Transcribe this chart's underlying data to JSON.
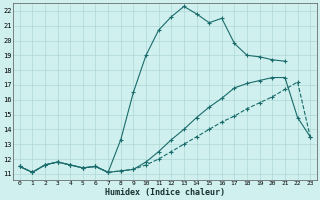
{
  "xlabel": "Humidex (Indice chaleur)",
  "bg_color": "#cff0ee",
  "grid_color": "#aed8d5",
  "line_color": "#1a6b6b",
  "xlim_min": -0.5,
  "xlim_max": 23.5,
  "ylim_min": 10.6,
  "ylim_max": 22.5,
  "xticks": [
    0,
    1,
    2,
    3,
    4,
    5,
    6,
    7,
    8,
    9,
    10,
    11,
    12,
    13,
    14,
    15,
    16,
    17,
    18,
    19,
    20,
    21,
    22,
    23
  ],
  "yticks": [
    11,
    12,
    13,
    14,
    15,
    16,
    17,
    18,
    19,
    20,
    21,
    22
  ],
  "line1_x": [
    0,
    1,
    2,
    3,
    4,
    5,
    6,
    7,
    8,
    9,
    10,
    11,
    12,
    13,
    14,
    15,
    16,
    17,
    18,
    19,
    20,
    21
  ],
  "line1_y": [
    11.5,
    11.1,
    11.6,
    11.8,
    11.6,
    11.4,
    11.5,
    11.1,
    13.3,
    16.5,
    19.0,
    20.7,
    21.6,
    22.3,
    21.8,
    21.2,
    21.5,
    19.8,
    19.0,
    18.9,
    18.7,
    18.6
  ],
  "line1_style": "-",
  "line2_x": [
    0,
    1,
    2,
    3,
    4,
    5,
    6,
    7,
    8,
    9,
    10,
    11,
    12,
    13,
    14,
    15,
    16,
    17,
    18,
    19,
    20,
    21,
    22,
    23
  ],
  "line2_y": [
    11.5,
    11.1,
    11.6,
    11.8,
    11.6,
    11.4,
    11.5,
    11.1,
    11.2,
    11.3,
    11.8,
    12.5,
    13.3,
    14.0,
    14.8,
    15.5,
    16.1,
    16.8,
    17.1,
    17.3,
    17.5,
    17.5,
    14.8,
    13.5
  ],
  "line2_style": "-",
  "line3_x": [
    0,
    1,
    2,
    3,
    4,
    5,
    6,
    7,
    8,
    9,
    10,
    11,
    12,
    13,
    14,
    15,
    16,
    17,
    18,
    19,
    20,
    21,
    22,
    23
  ],
  "line3_y": [
    11.5,
    11.1,
    11.6,
    11.8,
    11.6,
    11.4,
    11.5,
    11.1,
    11.2,
    11.3,
    11.6,
    12.0,
    12.5,
    13.0,
    13.5,
    14.0,
    14.5,
    14.9,
    15.4,
    15.8,
    16.2,
    16.7,
    17.2,
    13.5
  ],
  "line3_style": "--"
}
